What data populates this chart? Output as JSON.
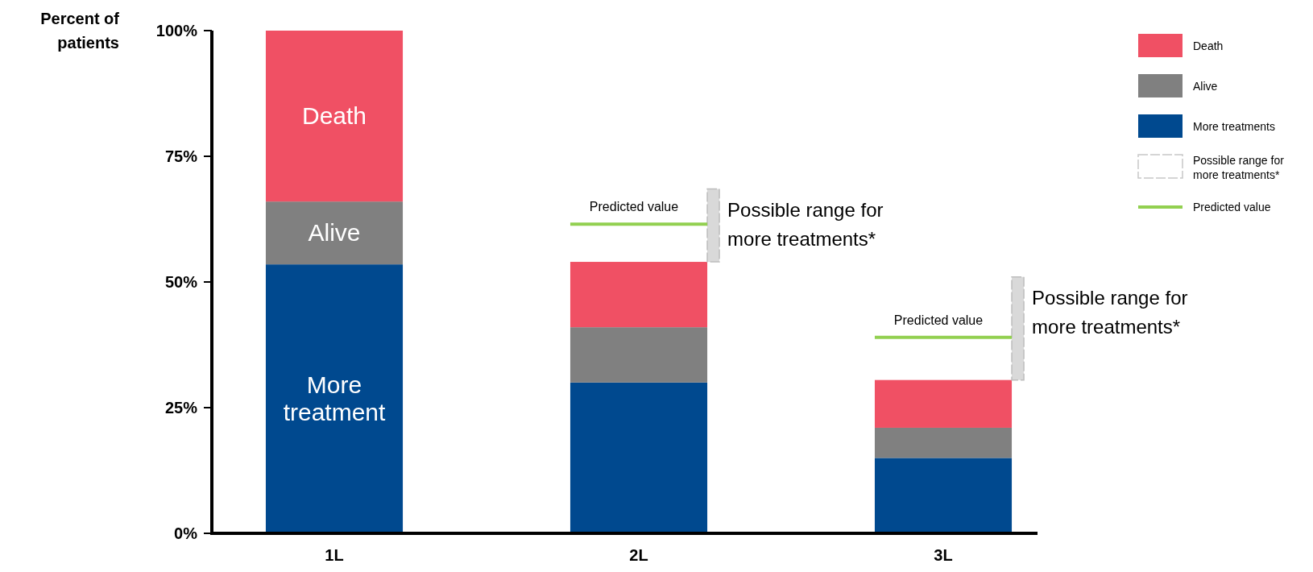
{
  "chart_data": {
    "type": "bar",
    "ylabel": "Percent of patients",
    "categories": [
      "1L",
      "2L",
      "3L"
    ],
    "stacked": true,
    "ylim": [
      0,
      100
    ],
    "yticks": [
      {
        "value": 0,
        "label": "0%"
      },
      {
        "value": 25,
        "label": "25%"
      },
      {
        "value": 50,
        "label": "50%"
      },
      {
        "value": 75,
        "label": "75%"
      },
      {
        "value": 100,
        "label": "100%"
      }
    ],
    "series": [
      {
        "name": "More treatments",
        "color": "#00498f",
        "values": [
          53.5,
          30,
          15
        ],
        "value_labels": [
          "More treatment",
          null,
          null
        ]
      },
      {
        "name": "Alive",
        "color": "#808080",
        "values": [
          12.5,
          11,
          6
        ],
        "value_labels": [
          "Alive",
          null,
          null
        ]
      },
      {
        "name": "Death",
        "color": "#f05064",
        "values": [
          34,
          13,
          9.5
        ],
        "value_labels": [
          "Death",
          null,
          null
        ]
      },
      {
        "name": "Possible range for more treatments*",
        "type": "bar",
        "color": "#d9d9d9",
        "base": [
          null,
          54,
          30.5
        ],
        "values": [
          null,
          14.5,
          20.5
        ]
      }
    ],
    "annotations": [
      "Possible range for more treatments*",
      "Possible range for more treatments*"
    ],
    "ref_lines": [
      {
        "axis": "y",
        "value": 61.5,
        "label": "Predicted value",
        "color": "#92d050"
      },
      {
        "axis": "y",
        "value": 39,
        "label": "Predicted value",
        "color": "#92d050"
      }
    ],
    "legend": "top right",
    "grid": false
  }
}
